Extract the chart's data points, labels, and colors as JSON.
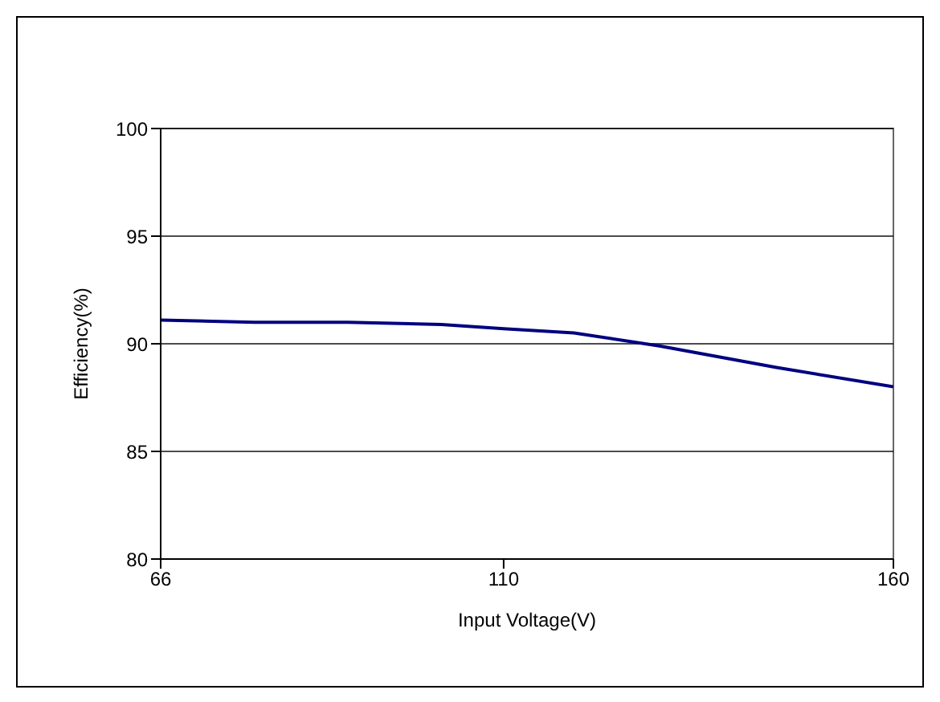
{
  "chart_data": {
    "type": "line",
    "xlabel": "Input Voltage(V)",
    "ylabel": "Efficiency(%)",
    "x": [
      66,
      78,
      90,
      102,
      110,
      119,
      130,
      145,
      160
    ],
    "series": [
      {
        "color": "#000080",
        "values": [
          91.1,
          91.0,
          91.0,
          90.9,
          90.7,
          90.5,
          89.9,
          88.9,
          88.0
        ]
      }
    ],
    "xlim": [
      66,
      160
    ],
    "xticks": [
      66,
      110,
      160
    ],
    "ylim": [
      80,
      100
    ],
    "yticks": [
      80,
      85,
      90,
      95,
      100
    ],
    "grid": "y",
    "legend": false,
    "marker": "none",
    "line_style": "solid"
  }
}
